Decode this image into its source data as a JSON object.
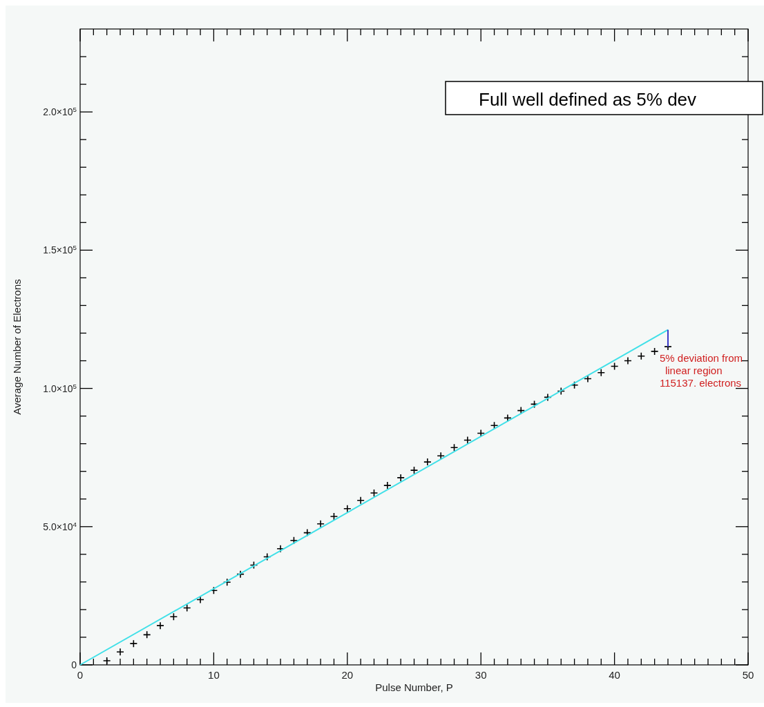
{
  "chart_data": {
    "type": "scatter",
    "xlabel": "Pulse Number, P",
    "ylabel": "Average Number of Electrons",
    "grid": false,
    "xlim": [
      0,
      50
    ],
    "ylim": [
      0,
      230000
    ],
    "xticks": [
      0,
      {
        "value": 1,
        "label": null
      },
      {
        "value": 2,
        "label": null
      },
      {
        "value": 3,
        "label": null
      },
      {
        "value": 4,
        "label": null
      },
      {
        "value": 5,
        "label": null
      },
      {
        "value": 6,
        "label": null
      },
      {
        "value": 7,
        "label": null
      },
      {
        "value": 8,
        "label": null
      },
      {
        "value": 9,
        "label": null
      },
      10,
      {
        "value": 11,
        "label": null
      },
      {
        "value": 12,
        "label": null
      },
      {
        "value": 13,
        "label": null
      },
      {
        "value": 14,
        "label": null
      },
      {
        "value": 15,
        "label": null
      },
      {
        "value": 16,
        "label": null
      },
      {
        "value": 17,
        "label": null
      },
      {
        "value": 18,
        "label": null
      },
      {
        "value": 19,
        "label": null
      },
      20,
      {
        "value": 21,
        "label": null
      },
      {
        "value": 22,
        "label": null
      },
      {
        "value": 23,
        "label": null
      },
      {
        "value": 24,
        "label": null
      },
      {
        "value": 25,
        "label": null
      },
      {
        "value": 26,
        "label": null
      },
      {
        "value": 27,
        "label": null
      },
      {
        "value": 28,
        "label": null
      },
      {
        "value": 29,
        "label": null
      },
      30,
      {
        "value": 31,
        "label": null
      },
      {
        "value": 32,
        "label": null
      },
      {
        "value": 33,
        "label": null
      },
      {
        "value": 34,
        "label": null
      },
      {
        "value": 35,
        "label": null
      },
      {
        "value": 36,
        "label": null
      },
      {
        "value": 37,
        "label": null
      },
      {
        "value": 38,
        "label": null
      },
      {
        "value": 39,
        "label": null
      },
      40,
      {
        "value": 41,
        "label": null
      },
      {
        "value": 42,
        "label": null
      },
      {
        "value": 43,
        "label": null
      },
      {
        "value": 44,
        "label": null
      },
      {
        "value": 45,
        "label": null
      },
      {
        "value": 46,
        "label": null
      },
      {
        "value": 47,
        "label": null
      },
      {
        "value": 48,
        "label": null
      },
      {
        "value": 49,
        "label": null
      },
      50
    ],
    "yticks": [
      0,
      {
        "value": 10000,
        "label": null
      },
      {
        "value": 20000,
        "label": null
      },
      {
        "value": 30000,
        "label": null
      },
      {
        "value": 40000,
        "label": null
      },
      {
        "value": 50000,
        "label": "5.0×10$^{4}$"
      },
      {
        "value": 60000,
        "label": null
      },
      {
        "value": 70000,
        "label": null
      },
      {
        "value": 80000,
        "label": null
      },
      {
        "value": 90000,
        "label": null
      },
      {
        "value": 100000,
        "label": "1.0×10$^{5}$"
      },
      {
        "value": 110000,
        "label": null
      },
      {
        "value": 120000,
        "label": null
      },
      {
        "value": 130000,
        "label": null
      },
      {
        "value": 140000,
        "label": null
      },
      {
        "value": 150000,
        "label": "1.5×10$^{5}$"
      },
      {
        "value": 160000,
        "label": null
      },
      {
        "value": 170000,
        "label": null
      },
      {
        "value": 180000,
        "label": null
      },
      {
        "value": 190000,
        "label": null
      },
      {
        "value": 200000,
        "label": "2.0×10$^{5}$"
      },
      {
        "value": 210000,
        "label": null
      },
      {
        "value": 220000,
        "label": null
      }
    ],
    "series": [
      {
        "marker": "cross",
        "color": "#000000",
        "x": [
          2,
          3,
          4,
          5,
          6,
          7,
          8,
          9,
          10,
          11,
          12,
          13,
          14,
          15,
          16,
          17,
          18,
          19,
          20,
          21,
          22,
          23,
          24,
          25,
          26,
          27,
          28,
          29,
          30,
          31,
          32,
          33,
          34,
          35,
          36,
          37,
          38,
          39,
          40,
          41,
          42,
          43,
          44
        ],
        "values": [
          1500,
          4700,
          7700,
          10900,
          14200,
          17400,
          20600,
          23600,
          26900,
          29900,
          32800,
          36100,
          39100,
          42000,
          45000,
          47800,
          51000,
          53700,
          56500,
          59500,
          62200,
          64900,
          67700,
          70400,
          73400,
          75600,
          78600,
          81300,
          83800,
          86600,
          89300,
          92000,
          94300,
          96800,
          99000,
          101200,
          103500,
          105700,
          108000,
          110000,
          111700,
          113400,
          115100
        ]
      },
      {
        "type": "line",
        "marker": "none",
        "color": "#40e0e8",
        "x": [
          0,
          44
        ],
        "values": [
          0,
          121200
        ]
      },
      {
        "type": "line",
        "marker": "none",
        "color": "#3838c8",
        "x": [
          44,
          44
        ],
        "values": [
          115100,
          121200
        ]
      }
    ],
    "annotations": [
      "Full well defined as 5% dev",
      {
        "text": "5% deviation from\nlinear region\n115137. electrons",
        "x": 44,
        "y": 115100
      }
    ]
  }
}
